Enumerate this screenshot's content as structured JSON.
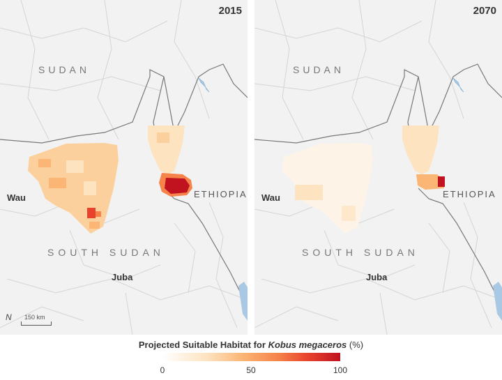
{
  "panels": [
    {
      "year": "2015"
    },
    {
      "year": "2070"
    }
  ],
  "labels": {
    "sudan": "SUDAN",
    "south_sudan": "SOUTH SUDAN",
    "ethiopia": "ETHIOPIA",
    "wau": "Wau",
    "juba": "Juba"
  },
  "scale_bar": {
    "label": "150 km",
    "north_symbol": "N"
  },
  "legend": {
    "title_prefix": "Projected Suitable Habitat for",
    "species": "Kobus megaceros",
    "unit": "(%)",
    "ticks": [
      "0",
      "50",
      "100"
    ],
    "colors": [
      "#ffffff",
      "#fde3c0",
      "#fbb676",
      "#f5834a",
      "#e8422d",
      "#c1121f"
    ]
  }
}
